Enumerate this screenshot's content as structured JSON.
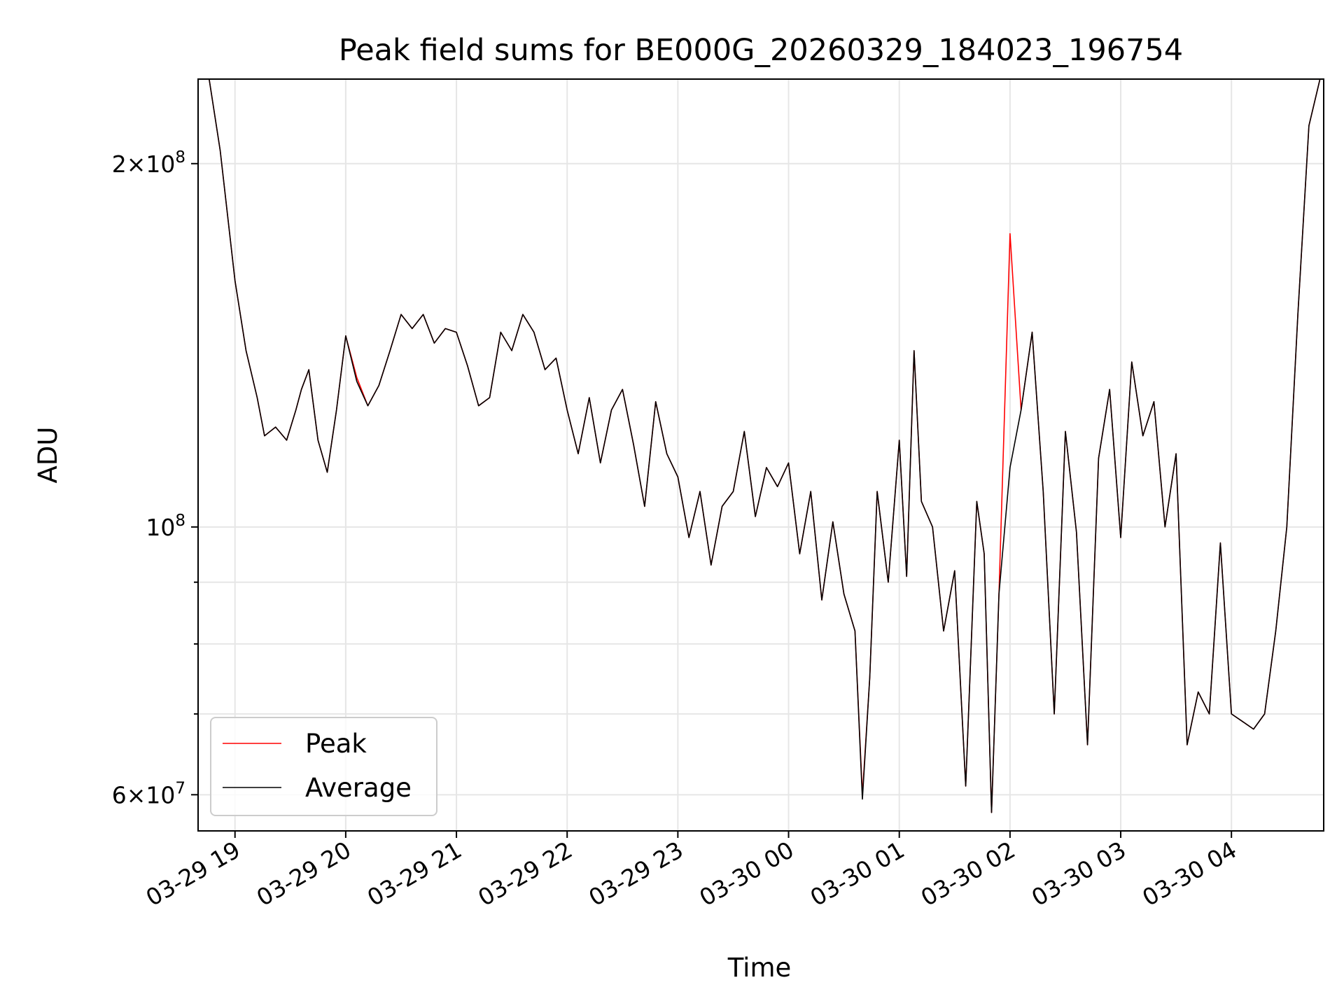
{
  "chart_data": {
    "type": "line",
    "title": "Peak field sums for BE000G_20260329_184023_196754",
    "xlabel": "Time",
    "ylabel": "ADU",
    "yscale": "log",
    "xlim": [
      "2026-03-29 18:40",
      "2026-03-30 04:50"
    ],
    "ylim": [
      56000000,
      235000000
    ],
    "grid": true,
    "legend_position": "lower-left",
    "x_tick_labels": [
      "03-29 19",
      "03-29 20",
      "03-29 21",
      "03-29 22",
      "03-29 23",
      "03-30 00",
      "03-30 01",
      "03-30 02",
      "03-30 03",
      "03-30 04"
    ],
    "y_tick_labels": [
      {
        "value": 60000000,
        "mantissa": "6",
        "base": "10",
        "exponent": "7"
      },
      {
        "value": 100000000,
        "mantissa": "",
        "base": "10",
        "exponent": "8"
      },
      {
        "value": 200000000,
        "mantissa": "2",
        "base": "10",
        "exponent": "8"
      }
    ],
    "series": [
      {
        "name": "Peak",
        "color": "#ff0000"
      },
      {
        "name": "Average",
        "color": "#000000"
      }
    ],
    "x": [
      "03-29 18:40",
      "03-29 18:46",
      "03-29 18:52",
      "03-29 19:00",
      "03-29 19:06",
      "03-29 19:12",
      "03-29 19:16",
      "03-29 19:22",
      "03-29 19:28",
      "03-29 19:33",
      "03-29 19:36",
      "03-29 19:40",
      "03-29 19:45",
      "03-29 19:50",
      "03-29 19:55",
      "03-29 20:00",
      "03-29 20:06",
      "03-29 20:12",
      "03-29 20:18",
      "03-29 20:24",
      "03-29 20:30",
      "03-29 20:36",
      "03-29 20:42",
      "03-29 20:48",
      "03-29 20:54",
      "03-29 21:00",
      "03-29 21:06",
      "03-29 21:12",
      "03-29 21:18",
      "03-29 21:24",
      "03-29 21:30",
      "03-29 21:36",
      "03-29 21:42",
      "03-29 21:48",
      "03-29 21:54",
      "03-29 22:00",
      "03-29 22:06",
      "03-29 22:12",
      "03-29 22:18",
      "03-29 22:24",
      "03-29 22:30",
      "03-29 22:36",
      "03-29 22:42",
      "03-29 22:48",
      "03-29 22:54",
      "03-29 23:00",
      "03-29 23:06",
      "03-29 23:12",
      "03-29 23:18",
      "03-29 23:24",
      "03-29 23:30",
      "03-29 23:36",
      "03-29 23:42",
      "03-29 23:48",
      "03-29 23:54",
      "03-30 00:00",
      "03-30 00:06",
      "03-30 00:12",
      "03-30 00:18",
      "03-30 00:24",
      "03-30 00:30",
      "03-30 00:36",
      "03-30 00:40",
      "03-30 00:44",
      "03-30 00:48",
      "03-30 00:54",
      "03-30 01:00",
      "03-30 01:04",
      "03-30 01:08",
      "03-30 01:12",
      "03-30 01:18",
      "03-30 01:24",
      "03-30 01:30",
      "03-30 01:36",
      "03-30 01:42",
      "03-30 01:46",
      "03-30 01:50",
      "03-30 01:54",
      "03-30 02:00",
      "03-30 02:06",
      "03-30 02:12",
      "03-30 02:18",
      "03-30 02:24",
      "03-30 02:30",
      "03-30 02:36",
      "03-30 02:42",
      "03-30 02:48",
      "03-30 02:54",
      "03-30 03:00",
      "03-30 03:06",
      "03-30 03:12",
      "03-30 03:18",
      "03-30 03:24",
      "03-30 03:30",
      "03-30 03:36",
      "03-30 03:42",
      "03-30 03:48",
      "03-30 03:54",
      "03-30 04:00",
      "03-30 04:06",
      "03-30 04:12",
      "03-30 04:18",
      "03-30 04:24",
      "03-30 04:30",
      "03-30 04:36",
      "03-30 04:42",
      "03-30 04:48"
    ],
    "values_average": [
      235000000,
      235000000,
      205000000,
      160000000,
      140000000,
      128000000,
      119000000,
      121000000,
      118000000,
      125000000,
      130000000,
      135000000,
      118000000,
      111000000,
      125000000,
      144000000,
      132000000,
      126000000,
      131000000,
      140000000,
      150000000,
      146000000,
      150000000,
      142000000,
      146000000,
      145000000,
      136000000,
      126000000,
      128000000,
      145000000,
      140000000,
      150000000,
      145000000,
      135000000,
      138000000,
      125000000,
      115000000,
      128000000,
      113000000,
      125000000,
      130000000,
      117000000,
      104000000,
      127000000,
      115000000,
      110000000,
      98000000,
      107000000,
      93000000,
      104000000,
      107000000,
      120000000,
      102000000,
      112000000,
      108000000,
      113000000,
      95000000,
      107000000,
      87000000,
      101000000,
      88000000,
      82000000,
      59500000,
      75000000,
      107000000,
      90000000,
      118000000,
      91000000,
      140000000,
      105000000,
      100000000,
      82000000,
      92000000,
      61000000,
      105000000,
      95000000,
      58000000,
      88000000,
      112000000,
      125000000,
      145000000,
      107000000,
      70000000,
      120000000,
      99000000,
      66000000,
      114000000,
      130000000,
      98000000,
      137000000,
      119000000,
      127000000,
      100000000,
      115000000,
      66000000,
      73000000,
      70000000,
      97000000,
      70000000,
      69000000,
      68000000,
      70000000,
      82000000,
      100000000,
      150000000,
      215000000,
      235000000
    ],
    "values_peak": [
      235000000,
      235000000,
      205000000,
      160000000,
      140000000,
      128000000,
      119000000,
      121000000,
      118000000,
      125000000,
      130000000,
      135000000,
      118000000,
      111000000,
      125000000,
      144000000,
      133000000,
      126000000,
      131000000,
      140000000,
      150000000,
      146000000,
      150000000,
      142000000,
      146000000,
      145000000,
      136000000,
      126000000,
      128000000,
      145000000,
      140000000,
      150000000,
      145000000,
      135000000,
      138000000,
      125000000,
      115000000,
      128000000,
      113000000,
      125000000,
      130000000,
      117000000,
      104000000,
      127000000,
      115000000,
      110000000,
      98000000,
      107000000,
      93000000,
      104000000,
      107000000,
      120000000,
      102000000,
      112000000,
      108000000,
      113000000,
      95000000,
      107000000,
      87000000,
      101000000,
      88000000,
      82000000,
      60000000,
      75000000,
      107000000,
      90000000,
      118000000,
      91000000,
      140000000,
      105000000,
      100000000,
      82000000,
      92000000,
      61000000,
      105000000,
      95000000,
      58000000,
      88000000,
      175000000,
      125000000,
      145000000,
      107000000,
      70000000,
      120000000,
      99000000,
      66000000,
      114000000,
      130000000,
      98000000,
      137000000,
      119000000,
      127000000,
      100000000,
      115000000,
      66000000,
      73000000,
      70000000,
      97000000,
      70000000,
      69000000,
      68000000,
      70000000,
      82000000,
      100000000,
      150000000,
      215000000,
      235000000
    ]
  }
}
